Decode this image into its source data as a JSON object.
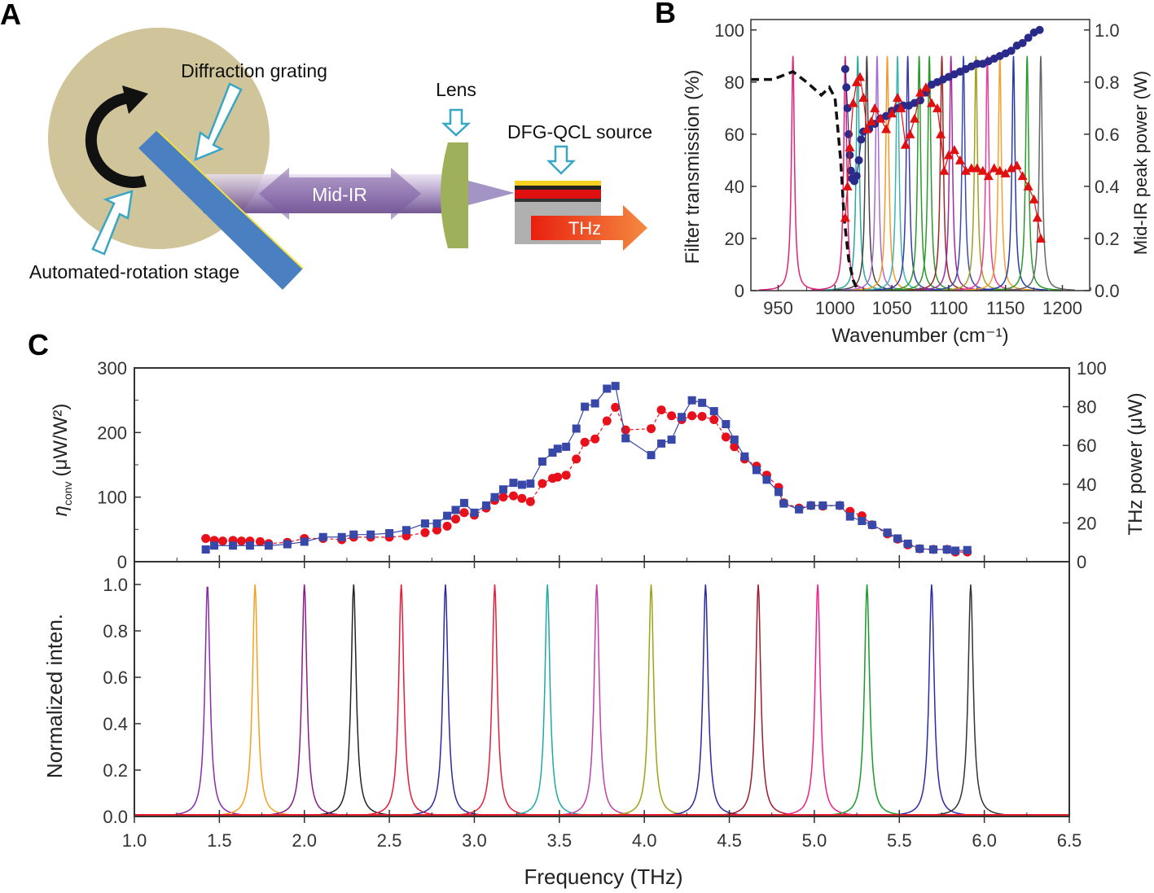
{
  "panel_labels": {
    "a": "A",
    "b": "B",
    "c": "C"
  },
  "diagram": {
    "diffraction_grating": "Diffraction grating",
    "lens": "Lens",
    "source": "DFG-QCL source",
    "stage": "Automated-rotation stage",
    "mid_ir": "Mid-IR",
    "thz": "THz",
    "colors": {
      "stage": "#cfc49a",
      "grating": "#4a7fc1",
      "beam": "#8a6fa8",
      "lens": "#9fb05a",
      "arrow_outline": "#3aa6c6"
    }
  },
  "chart_data": [
    {
      "id": "B",
      "type": "line",
      "xlabel": "Wavenumber (cm⁻¹)",
      "ylabel": "Filter transmission (%)",
      "y2label": "Mid-IR peak power (W)",
      "xlim": [
        926,
        1224
      ],
      "ylim": [
        0,
        104
      ],
      "y2lim": [
        0,
        1.04
      ],
      "xticks": [
        "950",
        "1000",
        "1050",
        "1100",
        "1150",
        "1200"
      ],
      "yticks": [
        "0",
        "20",
        "40",
        "60",
        "80",
        "100"
      ],
      "y2ticks": [
        "0.0",
        "0.2",
        "0.4",
        "0.6",
        "0.8",
        "1.0"
      ],
      "filter_peaks": {
        "height": 90,
        "positions": [
          963,
          1009,
          1020,
          1028,
          1037,
          1046,
          1055,
          1064,
          1074,
          1083,
          1094,
          1102,
          1113,
          1124,
          1134,
          1145,
          1157,
          1169,
          1181
        ],
        "colors": [
          "#e0237a",
          "#e0237a",
          "#2aa7a0",
          "#444444",
          "#a86ad0",
          "#f59a2a",
          "#3ab5b0",
          "#3a3aa8",
          "#2a9a2a",
          "#2a9a2a",
          "#9a2a2a",
          "#a02aa0",
          "#3a4ab0",
          "#a0a020",
          "#e8409a",
          "#f5a030",
          "#2a3aa8",
          "#2a9a2a",
          "#666666"
        ]
      },
      "transmission_dashed": {
        "x": [
          926,
          945,
          963,
          975,
          988,
          995,
          1000,
          1005,
          1008,
          1012,
          1016,
          1020
        ],
        "y": [
          81,
          81,
          84,
          80,
          75,
          78,
          74,
          50,
          28,
          12,
          4,
          0
        ]
      },
      "series": [
        {
          "name": "Mid-IR peak power",
          "axis": "right",
          "marker": "circle",
          "color": "#2a2a8a",
          "x": [
            1009,
            1010,
            1011,
            1012,
            1013,
            1014,
            1015,
            1017,
            1019,
            1021,
            1023,
            1025,
            1030,
            1035,
            1040,
            1045,
            1050,
            1055,
            1060,
            1065,
            1070,
            1075,
            1080,
            1085,
            1090,
            1095,
            1100,
            1105,
            1110,
            1115,
            1120,
            1125,
            1130,
            1135,
            1140,
            1145,
            1150,
            1155,
            1160,
            1165,
            1170,
            1175,
            1180
          ],
          "y": [
            0.85,
            0.78,
            0.7,
            0.6,
            0.52,
            0.46,
            0.43,
            0.42,
            0.44,
            0.5,
            0.58,
            0.61,
            0.62,
            0.64,
            0.66,
            0.67,
            0.69,
            0.7,
            0.71,
            0.71,
            0.72,
            0.73,
            0.76,
            0.79,
            0.8,
            0.81,
            0.82,
            0.83,
            0.84,
            0.85,
            0.86,
            0.87,
            0.87,
            0.88,
            0.89,
            0.9,
            0.91,
            0.92,
            0.94,
            0.95,
            0.97,
            0.99,
            1.0
          ]
        },
        {
          "name": "Filter peak transmission",
          "axis": "left",
          "marker": "triangle",
          "color": "#e01010",
          "x": [
            1009,
            1011,
            1013,
            1016,
            1019,
            1022,
            1025,
            1028,
            1032,
            1035,
            1040,
            1045,
            1050,
            1055,
            1058,
            1062,
            1066,
            1070,
            1075,
            1080,
            1085,
            1090,
            1093,
            1096,
            1100,
            1105,
            1110,
            1115,
            1120,
            1125,
            1130,
            1135,
            1140,
            1145,
            1150,
            1155,
            1160,
            1165,
            1170,
            1175,
            1178,
            1181
          ],
          "y": [
            28,
            40,
            55,
            72,
            80,
            82,
            74,
            62,
            65,
            70,
            66,
            62,
            68,
            74,
            70,
            56,
            60,
            66,
            76,
            78,
            72,
            70,
            60,
            46,
            52,
            54,
            50,
            46,
            47,
            47,
            46,
            44,
            47,
            46,
            45,
            47,
            48,
            44,
            40,
            35,
            28,
            20
          ]
        }
      ]
    },
    {
      "id": "C-top",
      "type": "line",
      "xlim": [
        1.0,
        6.5
      ],
      "ylim": [
        0,
        300
      ],
      "y2lim": [
        0,
        100
      ],
      "ylabel": "η",
      "ylabel_sub": "conv",
      "ylabel_unit": "(μW/W²)",
      "y2label": "THz power (μW)",
      "yticks": [
        "0",
        "100",
        "200",
        "300"
      ],
      "y2ticks": [
        "0",
        "20",
        "40",
        "60",
        "80",
        "100"
      ],
      "series": [
        {
          "name": "ηconv",
          "axis": "left",
          "marker": "circle",
          "color": "#e8101a",
          "x": [
            1.42,
            1.47,
            1.52,
            1.58,
            1.63,
            1.68,
            1.74,
            1.79,
            1.9,
            2.0,
            2.11,
            2.22,
            2.29,
            2.39,
            2.5,
            2.6,
            2.71,
            2.78,
            2.84,
            2.89,
            2.94,
            3.0,
            3.07,
            3.12,
            3.17,
            3.23,
            3.28,
            3.33,
            3.4,
            3.46,
            3.49,
            3.54,
            3.6,
            3.65,
            3.71,
            3.78,
            3.83,
            3.89,
            4.04,
            4.1,
            4.16,
            4.22,
            4.28,
            4.34,
            4.41,
            4.48,
            4.53,
            4.59,
            4.66,
            4.72,
            4.79,
            4.82,
            4.91,
            4.98,
            5.05,
            5.15,
            5.21,
            5.28,
            5.34,
            5.43,
            5.49,
            5.55,
            5.62,
            5.7,
            5.78,
            5.83,
            5.9
          ],
          "y": [
            36,
            33,
            32,
            33,
            32,
            32,
            31,
            28,
            30,
            36,
            36,
            34,
            38,
            38,
            38,
            40,
            45,
            49,
            55,
            66,
            76,
            72,
            83,
            95,
            100,
            102,
            98,
            93,
            121,
            129,
            131,
            134,
            159,
            185,
            190,
            218,
            239,
            204,
            206,
            235,
            226,
            220,
            226,
            225,
            220,
            193,
            178,
            159,
            148,
            134,
            115,
            91,
            83,
            87,
            86,
            87,
            78,
            71,
            57,
            43,
            35,
            26,
            20,
            19,
            19,
            15,
            15
          ]
        },
        {
          "name": "THz power",
          "axis": "right",
          "marker": "square",
          "color": "#3848a8",
          "x": [
            1.42,
            1.47,
            1.58,
            1.68,
            1.79,
            1.9,
            2.0,
            2.11,
            2.22,
            2.29,
            2.39,
            2.5,
            2.6,
            2.71,
            2.78,
            2.84,
            2.89,
            2.94,
            3.0,
            3.07,
            3.12,
            3.17,
            3.23,
            3.28,
            3.33,
            3.4,
            3.46,
            3.49,
            3.54,
            3.6,
            3.65,
            3.71,
            3.78,
            3.83,
            3.89,
            4.04,
            4.1,
            4.16,
            4.22,
            4.28,
            4.34,
            4.41,
            4.48,
            4.53,
            4.59,
            4.66,
            4.72,
            4.79,
            4.82,
            4.91,
            4.98,
            5.05,
            5.15,
            5.21,
            5.28,
            5.34,
            5.43,
            5.49,
            5.55,
            5.62,
            5.7,
            5.78,
            5.83,
            5.9
          ],
          "y": [
            6.3,
            8.3,
            8.3,
            8.3,
            8.3,
            9.0,
            10.3,
            12.7,
            12.7,
            14.0,
            14.0,
            14.7,
            16.3,
            19.7,
            19.7,
            23.7,
            26.7,
            30.3,
            25.3,
            29.0,
            33.3,
            37.3,
            40.7,
            39.7,
            40.3,
            51.7,
            56.3,
            58.3,
            59.3,
            68.7,
            80.0,
            81.7,
            89.3,
            90.7,
            63.7,
            55.0,
            61.0,
            63.0,
            74.7,
            83.3,
            82.0,
            77.7,
            71.0,
            63.0,
            54.3,
            47.3,
            42.3,
            36.0,
            30.0,
            27.0,
            29.0,
            29.0,
            29.0,
            23.3,
            21.0,
            19.0,
            15.0,
            12.0,
            9.3,
            6.7,
            6.3,
            6.3,
            5.7,
            6.0
          ]
        }
      ]
    },
    {
      "id": "C-bottom",
      "type": "line",
      "xlabel": "Frequency (THz)",
      "ylabel": "Normalized inten.",
      "xlim": [
        1.0,
        6.5
      ],
      "ylim": [
        0,
        1.1
      ],
      "xticks": [
        "1.0",
        "1.5",
        "2.0",
        "2.5",
        "3.0",
        "3.5",
        "4.0",
        "4.5",
        "5.0",
        "5.5",
        "6.0",
        "6.5"
      ],
      "yticks": [
        "0.0",
        "0.2",
        "0.4",
        "0.6",
        "0.8",
        "1.0"
      ],
      "peaks": {
        "positions": [
          1.43,
          1.71,
          2.0,
          2.29,
          2.57,
          2.83,
          3.12,
          3.43,
          3.72,
          4.04,
          4.36,
          4.67,
          5.02,
          5.31,
          5.69,
          5.92
        ],
        "colors": [
          "#8a2aa8",
          "#f5a020",
          "#8a1a8a",
          "#222222",
          "#e81a3a",
          "#2a2aa0",
          "#e0203a",
          "#20a8a8",
          "#c040a8",
          "#a0a018",
          "#2a2aa0",
          "#a01a2a",
          "#f0208a",
          "#1a9a2a",
          "#2a2aa8",
          "#333333"
        ],
        "height": 1.0
      }
    }
  ]
}
